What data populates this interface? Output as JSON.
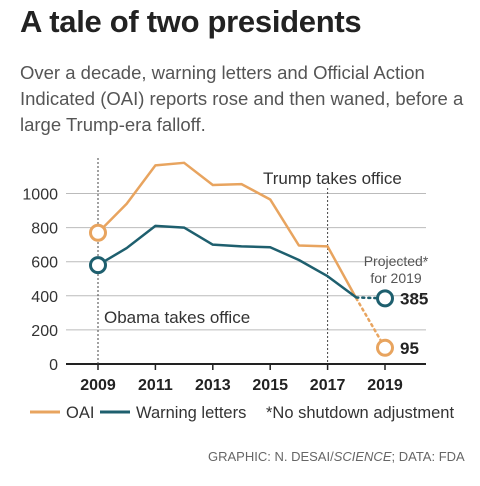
{
  "header": {
    "title": "A tale of two presidents",
    "subtitle": "Over a decade, warning letters and Official Action Indicated (OAI) reports rose and then waned, before a large Trump-era falloff."
  },
  "annotations": {
    "trump": "Trump takes office",
    "obama": "Obama takes office",
    "projected_line1": "Projected*",
    "projected_line2": "for 2019"
  },
  "legend": {
    "oai": "OAI",
    "warning": "Warning letters",
    "note": "*No shutdown adjustment"
  },
  "credit": {
    "prefix": "GRAPHIC: N. DESAI/",
    "publication": "SCIENCE",
    "suffix": "; DATA: FDA"
  },
  "colors": {
    "oai": "#E8A45F",
    "warning": "#1E5F6E",
    "grid": "#BBBBBB",
    "axis": "#222222"
  },
  "chart_data": {
    "type": "line",
    "x": [
      2009,
      2010,
      2011,
      2012,
      2013,
      2014,
      2015,
      2016,
      2017,
      2018
    ],
    "series": [
      {
        "name": "OAI",
        "values": [
          770,
          940,
          1165,
          1180,
          1050,
          1055,
          965,
          695,
          690,
          385
        ]
      },
      {
        "name": "Warning letters",
        "values": [
          580,
          680,
          810,
          800,
          700,
          690,
          685,
          610,
          515,
          390
        ]
      }
    ],
    "projected": [
      {
        "series": "OAI",
        "from_x": 2018,
        "x": 2019,
        "value": 95
      },
      {
        "series": "Warning letters",
        "from_x": 2018,
        "x": 2019,
        "value": 385
      }
    ],
    "yticks": [
      0,
      200,
      400,
      600,
      800,
      1000
    ],
    "xticks": [
      2009,
      2011,
      2013,
      2015,
      2017,
      2019
    ],
    "ylim": [
      0,
      1200
    ],
    "xlim": [
      2009,
      2019
    ],
    "grid": true,
    "markers": [
      {
        "label": "Obama takes office",
        "x": 2009
      },
      {
        "label": "Trump takes office",
        "x": 2017
      }
    ]
  }
}
